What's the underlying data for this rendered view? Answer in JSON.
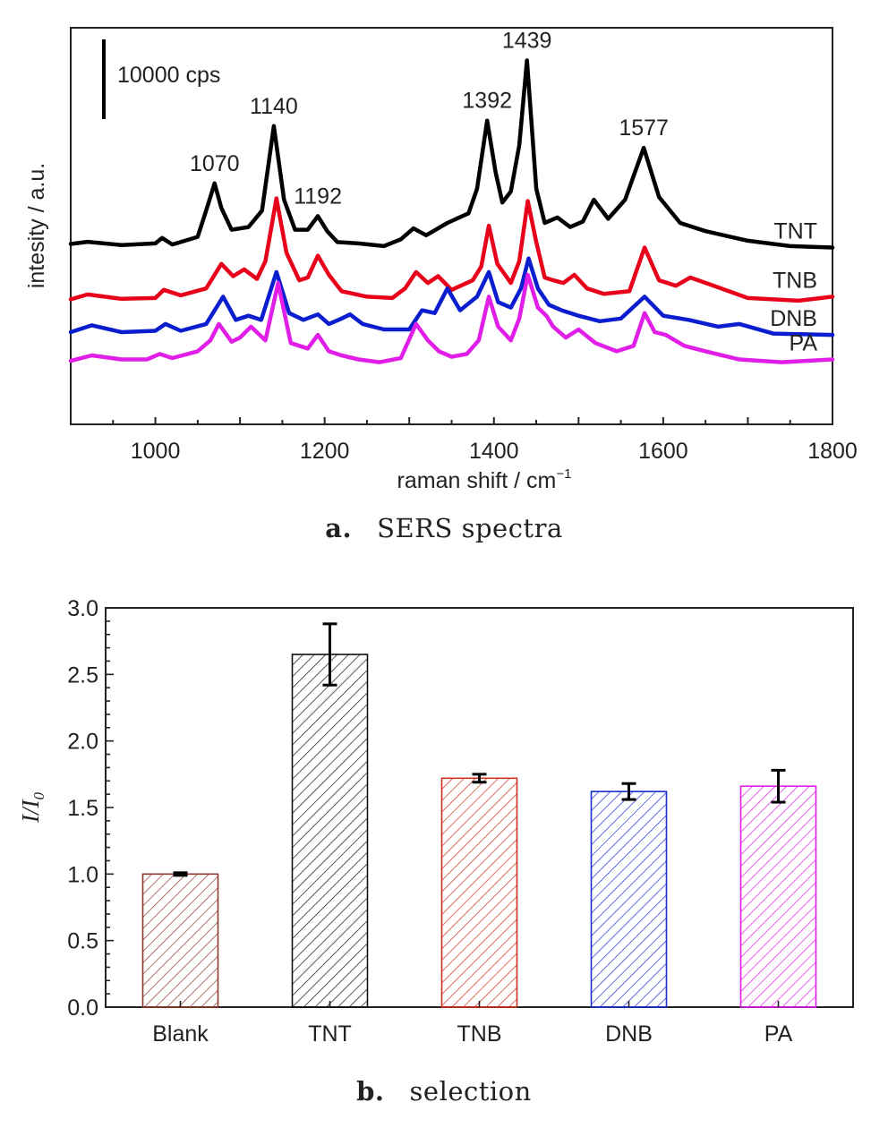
{
  "chart_data": [
    {
      "type": "line",
      "caption_label": "a.",
      "caption_text": "SERS spectra",
      "xlabel": "raman shift / cm",
      "xlabel_sup": "−1",
      "ylabel": "intesity / a.u.",
      "xlim": [
        900,
        1800
      ],
      "xticks": [
        1000,
        1200,
        1400,
        1600,
        1800
      ],
      "y_ticks_shown": false,
      "scale_bar_label": "10000 cps",
      "scale_bar_value_cps": 10000,
      "peak_labels": [
        {
          "text": "1070",
          "x": 1070,
          "series": "TNT"
        },
        {
          "text": "1140",
          "x": 1140,
          "series": "TNT"
        },
        {
          "text": "1192",
          "x": 1192,
          "series": "TNT"
        },
        {
          "text": "1392",
          "x": 1392,
          "series": "TNT"
        },
        {
          "text": "1439",
          "x": 1439,
          "series": "TNT"
        },
        {
          "text": "1577",
          "x": 1577,
          "series": "TNT"
        }
      ],
      "series": [
        {
          "name": "TNT",
          "color": "#000000",
          "baseline": 0.0,
          "x": [
            900,
            920,
            960,
            1000,
            1008,
            1020,
            1050,
            1062,
            1070,
            1078,
            1090,
            1110,
            1126,
            1140,
            1152,
            1165,
            1180,
            1192,
            1203,
            1215,
            1240,
            1270,
            1290,
            1305,
            1320,
            1345,
            1370,
            1380,
            1392,
            1402,
            1410,
            1420,
            1430,
            1439,
            1450,
            1460,
            1475,
            1490,
            1505,
            1518,
            1535,
            1555,
            1577,
            1595,
            1620,
            1650,
            1700,
            1750,
            1800
          ],
          "y": [
            0.18,
            0.26,
            0.14,
            0.2,
            0.4,
            0.16,
            0.44,
            1.6,
            2.4,
            1.5,
            0.7,
            0.8,
            1.4,
            4.5,
            1.8,
            0.7,
            0.7,
            1.2,
            0.65,
            0.25,
            0.2,
            0.1,
            0.35,
            0.75,
            0.5,
            0.95,
            1.3,
            2.2,
            4.7,
            2.8,
            1.7,
            2.1,
            3.8,
            6.9,
            2.2,
            0.95,
            1.15,
            0.8,
            1.0,
            1.8,
            1.1,
            1.8,
            3.7,
            1.9,
            0.95,
            0.65,
            0.3,
            0.1,
            0.05
          ]
        },
        {
          "name": "TNB",
          "color": "#e8001a",
          "baseline": -1.95,
          "x": [
            900,
            920,
            960,
            1000,
            1010,
            1030,
            1060,
            1078,
            1092,
            1105,
            1120,
            1130,
            1143,
            1155,
            1170,
            1180,
            1192,
            1205,
            1220,
            1250,
            1280,
            1295,
            1308,
            1322,
            1334,
            1350,
            1375,
            1385,
            1394,
            1404,
            1420,
            1430,
            1440,
            1450,
            1460,
            1470,
            1482,
            1495,
            1510,
            1530,
            1560,
            1578,
            1595,
            1615,
            1632,
            1655,
            1700,
            1760,
            1800
          ],
          "y": [
            0.1,
            0.28,
            0.12,
            0.15,
            0.45,
            0.25,
            0.5,
            1.4,
            0.95,
            1.2,
            0.85,
            1.5,
            3.8,
            1.8,
            0.8,
            0.9,
            1.7,
            1.0,
            0.4,
            0.2,
            0.15,
            0.5,
            1.1,
            0.7,
            0.95,
            0.45,
            0.8,
            1.3,
            2.8,
            1.4,
            0.7,
            1.5,
            3.7,
            2.2,
            0.9,
            0.8,
            0.7,
            1.0,
            0.5,
            0.3,
            0.4,
            2.0,
            0.8,
            0.6,
            0.9,
            0.65,
            0.15,
            0.05,
            0.2
          ]
        },
        {
          "name": "DNB",
          "color": "#0b1ecf",
          "baseline": -3.15,
          "x": [
            900,
            925,
            960,
            1000,
            1012,
            1030,
            1060,
            1080,
            1095,
            1110,
            1125,
            1143,
            1158,
            1175,
            1192,
            1205,
            1220,
            1230,
            1245,
            1270,
            1300,
            1315,
            1330,
            1345,
            1360,
            1380,
            1394,
            1405,
            1420,
            1432,
            1441,
            1452,
            1465,
            1480,
            1500,
            1525,
            1550,
            1578,
            1600,
            1630,
            1665,
            1690,
            1730,
            1800
          ],
          "y": [
            0.1,
            0.35,
            0.1,
            0.15,
            0.4,
            0.15,
            0.4,
            1.4,
            0.55,
            0.7,
            0.55,
            2.3,
            0.8,
            0.55,
            0.75,
            0.4,
            0.6,
            0.75,
            0.4,
            0.2,
            0.2,
            0.9,
            0.8,
            1.7,
            0.9,
            1.4,
            2.3,
            1.2,
            1.0,
            1.7,
            2.8,
            1.7,
            1.1,
            0.9,
            0.7,
            0.5,
            0.6,
            1.4,
            0.7,
            0.55,
            0.3,
            0.4,
            0.05,
            0.0
          ]
        },
        {
          "name": "PA",
          "color": "#e11ee8",
          "baseline": -4.15,
          "x": [
            900,
            925,
            960,
            990,
            1005,
            1020,
            1050,
            1065,
            1075,
            1090,
            1100,
            1113,
            1130,
            1145,
            1160,
            1180,
            1192,
            1205,
            1220,
            1240,
            1265,
            1290,
            1308,
            1322,
            1335,
            1350,
            1368,
            1382,
            1394,
            1405,
            1420,
            1430,
            1440,
            1452,
            1462,
            1470,
            1485,
            1500,
            1520,
            1545,
            1565,
            1578,
            1590,
            1603,
            1625,
            1650,
            1690,
            1740,
            1800
          ],
          "y": [
            0.05,
            0.25,
            0.1,
            0.1,
            0.3,
            0.15,
            0.4,
            0.8,
            1.4,
            0.75,
            0.9,
            1.3,
            0.8,
            2.9,
            0.7,
            0.5,
            1.0,
            0.4,
            0.25,
            0.1,
            0.0,
            0.15,
            1.4,
            0.8,
            0.4,
            0.2,
            0.3,
            0.8,
            2.4,
            1.3,
            0.8,
            1.6,
            3.2,
            2.0,
            1.7,
            1.3,
            0.9,
            1.2,
            0.7,
            0.4,
            0.6,
            1.8,
            1.1,
            1.0,
            0.6,
            0.4,
            0.1,
            0.0,
            0.1
          ]
        }
      ]
    },
    {
      "type": "bar",
      "caption_label": "b.",
      "caption_text": "selection",
      "ylabel_main": "I/I",
      "ylabel_sub": "0",
      "ylim": [
        0,
        3.0
      ],
      "yticks": [
        "0.0",
        "0.5",
        "1.0",
        "1.5",
        "2.0",
        "2.5",
        "3.0"
      ],
      "categories": [
        "Blank",
        "TNT",
        "TNB",
        "DNB",
        "PA"
      ],
      "values": [
        1.0,
        2.65,
        1.72,
        1.62,
        1.66
      ],
      "errors": [
        0.01,
        0.23,
        0.03,
        0.06,
        0.12
      ],
      "colors": [
        "#8b3a2b",
        "#111111",
        "#d0301f",
        "#1a2fcf",
        "#e01ce8"
      ],
      "fill_pattern": "diagonal-hatch"
    }
  ]
}
